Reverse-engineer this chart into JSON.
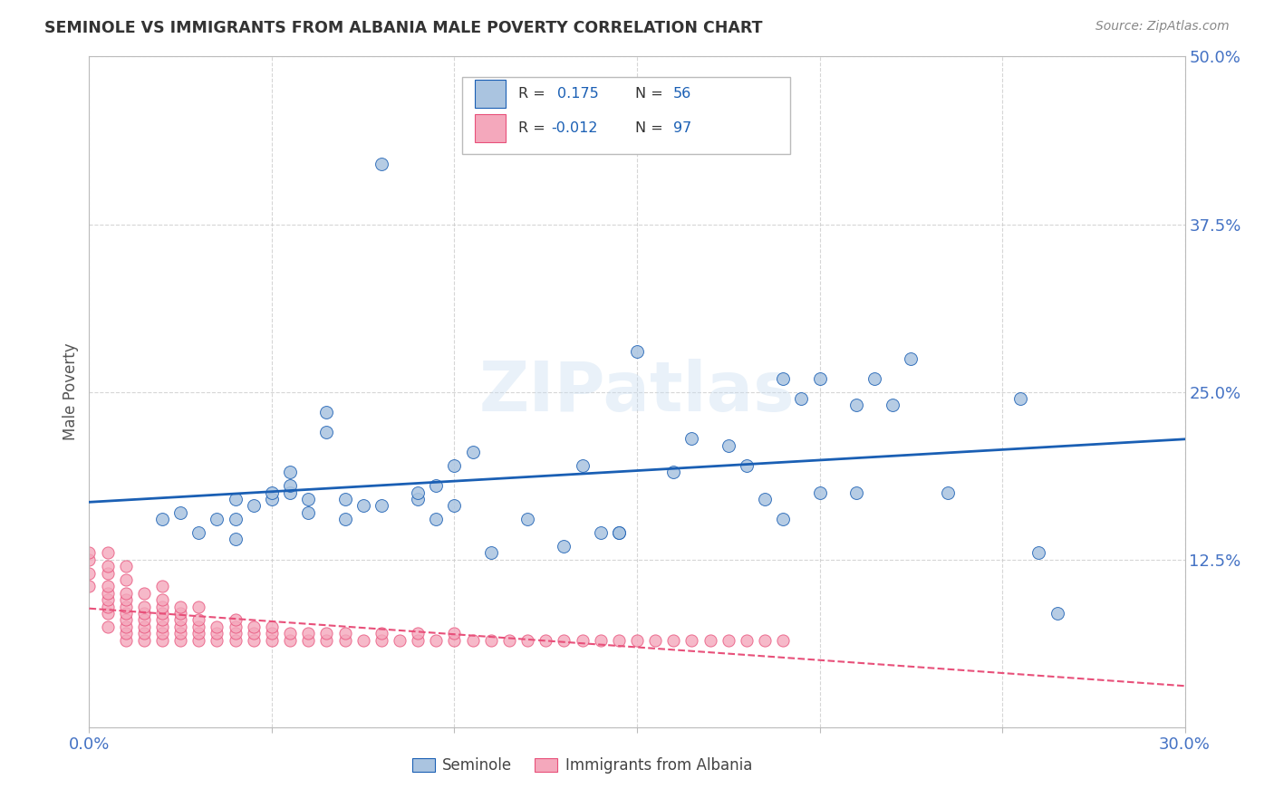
{
  "title": "SEMINOLE VS IMMIGRANTS FROM ALBANIA MALE POVERTY CORRELATION CHART",
  "source": "Source: ZipAtlas.com",
  "ylabel_label": "Male Poverty",
  "xlim": [
    0.0,
    0.3
  ],
  "ylim": [
    0.0,
    0.5
  ],
  "seminole_R": 0.175,
  "seminole_N": 56,
  "albania_R": -0.012,
  "albania_N": 97,
  "seminole_color": "#aac4e0",
  "albania_color": "#f4a8bc",
  "seminole_line_color": "#1a5fb4",
  "albania_line_color": "#e8507a",
  "watermark": "ZIPatlas",
  "background_color": "#ffffff",
  "grid_color": "#cccccc",
  "seminole_x": [
    0.02,
    0.025,
    0.03,
    0.035,
    0.04,
    0.04,
    0.04,
    0.045,
    0.05,
    0.05,
    0.055,
    0.055,
    0.055,
    0.06,
    0.06,
    0.065,
    0.065,
    0.07,
    0.07,
    0.075,
    0.08,
    0.08,
    0.09,
    0.09,
    0.095,
    0.095,
    0.1,
    0.1,
    0.105,
    0.11,
    0.12,
    0.13,
    0.135,
    0.14,
    0.145,
    0.145,
    0.15,
    0.16,
    0.165,
    0.175,
    0.18,
    0.185,
    0.19,
    0.19,
    0.195,
    0.2,
    0.2,
    0.21,
    0.21,
    0.215,
    0.22,
    0.225,
    0.235,
    0.255,
    0.26,
    0.265
  ],
  "seminole_y": [
    0.155,
    0.16,
    0.145,
    0.155,
    0.14,
    0.155,
    0.17,
    0.165,
    0.17,
    0.175,
    0.175,
    0.18,
    0.19,
    0.16,
    0.17,
    0.22,
    0.235,
    0.155,
    0.17,
    0.165,
    0.42,
    0.165,
    0.17,
    0.175,
    0.155,
    0.18,
    0.165,
    0.195,
    0.205,
    0.13,
    0.155,
    0.135,
    0.195,
    0.145,
    0.145,
    0.145,
    0.28,
    0.19,
    0.215,
    0.21,
    0.195,
    0.17,
    0.155,
    0.26,
    0.245,
    0.26,
    0.175,
    0.24,
    0.175,
    0.26,
    0.24,
    0.275,
    0.175,
    0.245,
    0.13,
    0.085
  ],
  "albania_x": [
    0.0,
    0.0,
    0.0,
    0.0,
    0.005,
    0.005,
    0.005,
    0.005,
    0.005,
    0.005,
    0.005,
    0.005,
    0.005,
    0.01,
    0.01,
    0.01,
    0.01,
    0.01,
    0.01,
    0.01,
    0.01,
    0.01,
    0.01,
    0.015,
    0.015,
    0.015,
    0.015,
    0.015,
    0.015,
    0.015,
    0.02,
    0.02,
    0.02,
    0.02,
    0.02,
    0.02,
    0.02,
    0.02,
    0.025,
    0.025,
    0.025,
    0.025,
    0.025,
    0.025,
    0.03,
    0.03,
    0.03,
    0.03,
    0.03,
    0.035,
    0.035,
    0.035,
    0.04,
    0.04,
    0.04,
    0.04,
    0.045,
    0.045,
    0.045,
    0.05,
    0.05,
    0.05,
    0.055,
    0.055,
    0.06,
    0.06,
    0.065,
    0.065,
    0.07,
    0.07,
    0.075,
    0.08,
    0.08,
    0.085,
    0.09,
    0.09,
    0.095,
    0.1,
    0.1,
    0.105,
    0.11,
    0.115,
    0.12,
    0.125,
    0.13,
    0.135,
    0.14,
    0.145,
    0.15,
    0.155,
    0.16,
    0.165,
    0.17,
    0.175,
    0.18,
    0.185,
    0.19
  ],
  "albania_y": [
    0.105,
    0.115,
    0.125,
    0.13,
    0.075,
    0.085,
    0.09,
    0.095,
    0.1,
    0.105,
    0.115,
    0.12,
    0.13,
    0.065,
    0.07,
    0.075,
    0.08,
    0.085,
    0.09,
    0.095,
    0.1,
    0.11,
    0.12,
    0.065,
    0.07,
    0.075,
    0.08,
    0.085,
    0.09,
    0.1,
    0.065,
    0.07,
    0.075,
    0.08,
    0.085,
    0.09,
    0.095,
    0.105,
    0.065,
    0.07,
    0.075,
    0.08,
    0.085,
    0.09,
    0.065,
    0.07,
    0.075,
    0.08,
    0.09,
    0.065,
    0.07,
    0.075,
    0.065,
    0.07,
    0.075,
    0.08,
    0.065,
    0.07,
    0.075,
    0.065,
    0.07,
    0.075,
    0.065,
    0.07,
    0.065,
    0.07,
    0.065,
    0.07,
    0.065,
    0.07,
    0.065,
    0.065,
    0.07,
    0.065,
    0.065,
    0.07,
    0.065,
    0.065,
    0.07,
    0.065,
    0.065,
    0.065,
    0.065,
    0.065,
    0.065,
    0.065,
    0.065,
    0.065,
    0.065,
    0.065,
    0.065,
    0.065,
    0.065,
    0.065,
    0.065,
    0.065,
    0.065
  ]
}
